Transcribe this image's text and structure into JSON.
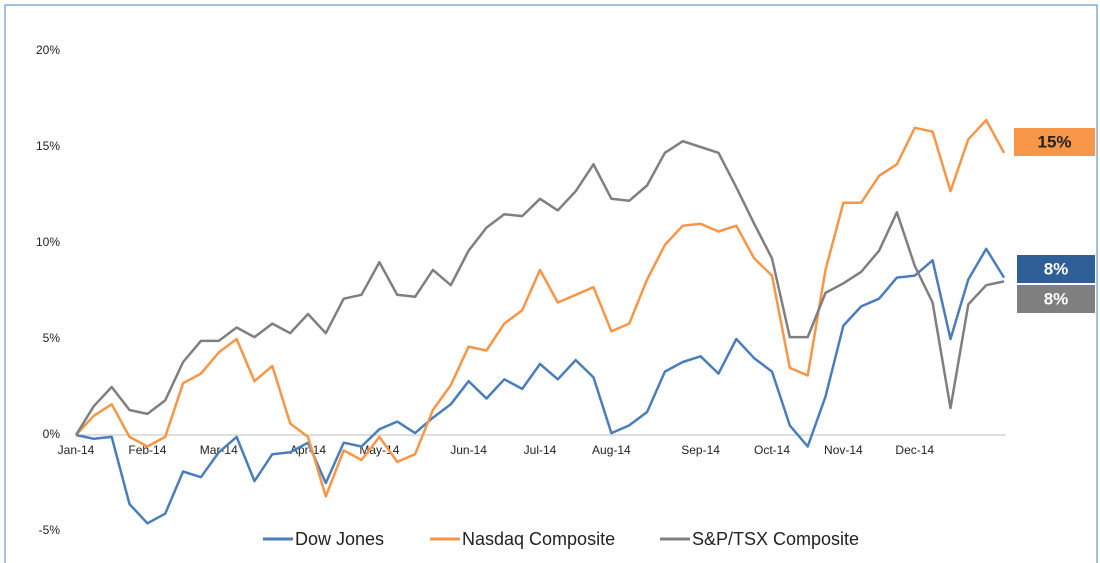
{
  "chart_data": {
    "type": "line",
    "categories": [
      "Jan-14",
      null,
      null,
      null,
      "Feb-14",
      null,
      null,
      null,
      "Mar-14",
      null,
      null,
      null,
      null,
      "Apr-14",
      null,
      null,
      null,
      "May-14",
      null,
      null,
      null,
      null,
      "Jun-14",
      null,
      null,
      null,
      "Jul-14",
      null,
      null,
      null,
      "Aug-14",
      null,
      null,
      null,
      null,
      "Sep-14",
      null,
      null,
      null,
      "Oct-14",
      null,
      null,
      null,
      "Nov-14",
      null,
      null,
      null,
      "Dec-14",
      null,
      null,
      null,
      null,
      null
    ],
    "series": [
      {
        "name": "Dow Jones",
        "color": "#4a7ebb",
        "end_label": "8%",
        "values": [
          0,
          -0.2,
          -0.1,
          -3.6,
          -4.6,
          -4.1,
          -1.9,
          -2.2,
          -0.9,
          -0.1,
          -2.4,
          -1.0,
          -0.9,
          -0.4,
          -2.5,
          -0.4,
          -0.6,
          0.3,
          0.7,
          0.1,
          0.9,
          1.6,
          2.8,
          1.9,
          2.9,
          2.4,
          3.7,
          2.9,
          3.9,
          3.0,
          0.1,
          0.5,
          1.2,
          3.3,
          3.8,
          4.1,
          3.2,
          5.0,
          4.0,
          3.3,
          0.5,
          -0.6,
          2.0,
          5.7,
          6.7,
          7.1,
          8.2,
          8.3,
          9.1,
          5.0,
          8.1,
          9.7,
          8.2
        ]
      },
      {
        "name": "Nasdaq Composite",
        "color": "#f79646",
        "end_label": "15%",
        "values": [
          0,
          1.0,
          1.6,
          -0.1,
          -0.6,
          -0.1,
          2.7,
          3.2,
          4.3,
          5.0,
          2.8,
          3.6,
          0.6,
          -0.1,
          -3.2,
          -0.8,
          -1.3,
          -0.1,
          -1.4,
          -1.0,
          1.3,
          2.6,
          4.6,
          4.4,
          5.8,
          6.5,
          8.6,
          6.9,
          7.3,
          7.7,
          5.4,
          5.8,
          8.1,
          9.9,
          10.9,
          11.0,
          10.6,
          10.9,
          9.2,
          8.3,
          3.5,
          3.1,
          8.6,
          12.1,
          12.1,
          13.5,
          14.1,
          16.0,
          15.8,
          12.7,
          15.4,
          16.4,
          14.7
        ]
      },
      {
        "name": "S&P/TSX Composite",
        "color": "#7f7f7f",
        "end_label": "8%",
        "values": [
          0,
          1.5,
          2.5,
          1.3,
          1.1,
          1.8,
          3.8,
          4.9,
          4.9,
          5.6,
          5.1,
          5.8,
          5.3,
          6.3,
          5.3,
          7.1,
          7.3,
          9.0,
          7.3,
          7.2,
          8.6,
          7.8,
          9.6,
          10.8,
          11.5,
          11.4,
          12.3,
          11.7,
          12.7,
          14.1,
          12.3,
          12.2,
          13.0,
          14.7,
          15.3,
          15.0,
          14.7,
          12.9,
          11.0,
          9.2,
          5.1,
          5.1,
          7.4,
          7.9,
          8.5,
          9.6,
          11.6,
          8.8,
          6.9,
          1.4,
          6.8,
          7.8,
          8.0
        ]
      }
    ],
    "ylim": [
      -5,
      20
    ],
    "yticks": [
      {
        "value": -5,
        "label": "-5%"
      },
      {
        "value": 0,
        "label": "0%"
      },
      {
        "value": 5,
        "label": "5%"
      },
      {
        "value": 10,
        "label": "10%"
      },
      {
        "value": 15,
        "label": "15%"
      },
      {
        "value": 20,
        "label": "20%"
      }
    ],
    "legend": "bottom"
  }
}
